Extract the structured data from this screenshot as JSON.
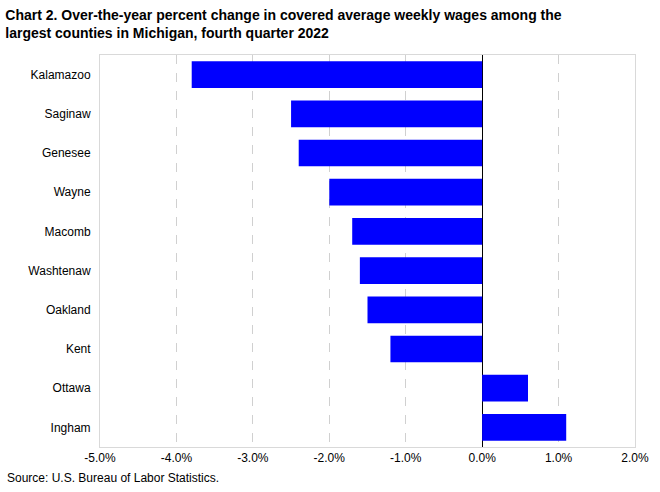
{
  "chart_data": {
    "type": "bar",
    "orientation": "horizontal",
    "title": "Chart 2. Over-the-year percent change in covered average weekly wages among the\nlargest counties in Michigan, fourth quarter 2022",
    "source": "Source: U.S. Bureau of Labor Statistics.",
    "categories": [
      "Kalamazoo",
      "Saginaw",
      "Genesee",
      "Wayne",
      "Macomb",
      "Washtenaw",
      "Oakland",
      "Kent",
      "Ottawa",
      "Ingham"
    ],
    "values": [
      -3.8,
      -2.5,
      -2.4,
      -2.0,
      -1.7,
      -1.6,
      -1.5,
      -1.2,
      0.6,
      1.1
    ],
    "color": "#0000ff",
    "xlim": [
      -5,
      2
    ],
    "xticks": [
      {
        "value": -5,
        "label": "-5.0%"
      },
      {
        "value": -4,
        "label": "-4.0%"
      },
      {
        "value": -3,
        "label": "-3.0%"
      },
      {
        "value": -2,
        "label": "-2.0%"
      },
      {
        "value": -1,
        "label": "-1.0%"
      },
      {
        "value": 0,
        "label": "0.0%"
      },
      {
        "value": 1,
        "label": "1.0%"
      },
      {
        "value": 2,
        "label": "2.0%"
      }
    ],
    "grid": true
  }
}
